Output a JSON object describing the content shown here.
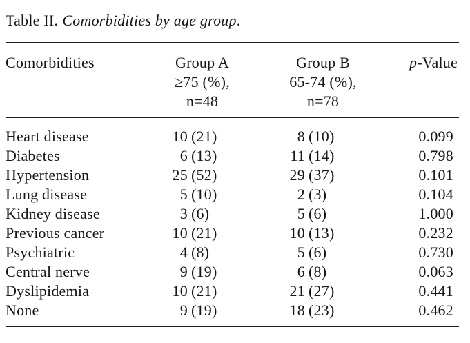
{
  "caption": {
    "label": "Table II.",
    "title_italic": "Comorbidities by age group",
    "period": "."
  },
  "header": {
    "comorbidities": "Comorbidities",
    "group_a": {
      "line1": "Group A",
      "line2": "≥75 (%),",
      "line3": "n=48"
    },
    "group_b": {
      "line1": "Group B",
      "line2": "65-74 (%),",
      "line3": "n=78"
    },
    "p_value": {
      "italic": "p",
      "rest": "-Value"
    }
  },
  "rows": [
    {
      "label": "Heart disease",
      "a_n": "10",
      "a_pct": "(21)",
      "b_n": "8",
      "b_pct": "(10)",
      "p": "0.099"
    },
    {
      "label": "Diabetes",
      "a_n": "6",
      "a_pct": "(13)",
      "b_n": "11",
      "b_pct": "(14)",
      "p": "0.798"
    },
    {
      "label": "Hypertension",
      "a_n": "25",
      "a_pct": "(52)",
      "b_n": "29",
      "b_pct": "(37)",
      "p": "0.101"
    },
    {
      "label": "Lung disease",
      "a_n": "5",
      "a_pct": "(10)",
      "b_n": "2",
      "b_pct": "(3)",
      "p": "0.104"
    },
    {
      "label": "Kidney disease",
      "a_n": "3",
      "a_pct": "(6)",
      "b_n": "5",
      "b_pct": "(6)",
      "p": "1.000"
    },
    {
      "label": "Previous cancer",
      "a_n": "10",
      "a_pct": "(21)",
      "b_n": "10",
      "b_pct": "(13)",
      "p": "0.232"
    },
    {
      "label": "Psychiatric",
      "a_n": "4",
      "a_pct": "(8)",
      "b_n": "5",
      "b_pct": "(6)",
      "p": "0.730"
    },
    {
      "label": "Central nerve",
      "a_n": "9",
      "a_pct": "(19)",
      "b_n": "6",
      "b_pct": "(8)",
      "p": "0.063"
    },
    {
      "label": "Dyslipidemia",
      "a_n": "10",
      "a_pct": "(21)",
      "b_n": "21",
      "b_pct": "(27)",
      "p": "0.441"
    },
    {
      "label": "None",
      "a_n": "9",
      "a_pct": "(19)",
      "b_n": "18",
      "b_pct": "(23)",
      "p": "0.462"
    }
  ],
  "colors": {
    "background": "#ffffff",
    "text": "#161616",
    "rule": "#1e1e1e"
  }
}
